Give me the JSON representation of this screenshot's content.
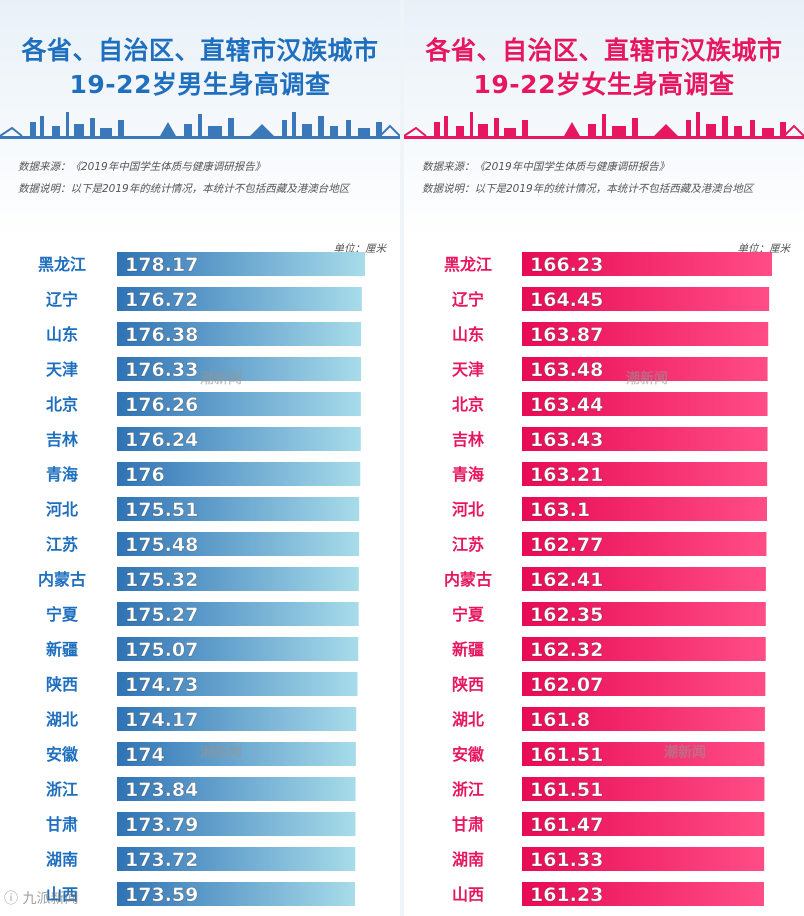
{
  "panels": [
    {
      "title_line1": "各省、自治区、直辖市汉族城市",
      "title_line2": "19-22岁男生身高调查",
      "source": "数据来源：《2019年中国学生体质与健康调研报告》",
      "note": "数据说明：以下是2019年的统计情况，本统计不包括西藏及港澳台地区",
      "unit": "单位：厘米",
      "accent": "#1f6fbf"
    },
    {
      "title_line1": "各省、自治区、直辖市汉族城市",
      "title_line2": "19-22岁女生身高调查",
      "source": "数据来源：《2019年中国学生体质与健康调研报告》",
      "note": "数据说明：以下是2019年的统计情况，本统计不包括西藏及港澳台地区",
      "unit": "单位：厘米",
      "accent": "#e6175f"
    }
  ],
  "watermark": "潮新闻",
  "corner_mark": "ⓘ 九派新闻",
  "chart_data": [
    {
      "type": "bar",
      "orientation": "horizontal",
      "title": "各省、自治区、直辖市汉族城市 19-22岁男生身高调查",
      "unit": "厘米",
      "bar_colors": [
        "#2f73b5",
        "#a8dcea"
      ],
      "label_color": "#1f6fbf",
      "categories": [
        "黑龙江",
        "辽宁",
        "山东",
        "天津",
        "北京",
        "吉林",
        "青海",
        "河北",
        "江苏",
        "内蒙古",
        "宁夏",
        "新疆",
        "陕西",
        "湖北",
        "安徽",
        "浙江",
        "甘肃",
        "湖南",
        "山西"
      ],
      "values": [
        178.17,
        176.72,
        176.38,
        176.33,
        176.26,
        176.24,
        176,
        175.51,
        175.48,
        175.32,
        175.27,
        175.07,
        174.73,
        174.17,
        174,
        173.84,
        173.79,
        173.72,
        173.59
      ]
    },
    {
      "type": "bar",
      "orientation": "horizontal",
      "title": "各省、自治区、直辖市汉族城市 19-22岁女生身高调查",
      "unit": "厘米",
      "bar_colors": [
        "#e80a55",
        "#ff4d86"
      ],
      "label_color": "#e6175f",
      "categories": [
        "黑龙江",
        "辽宁",
        "山东",
        "天津",
        "北京",
        "吉林",
        "青海",
        "河北",
        "江苏",
        "内蒙古",
        "宁夏",
        "新疆",
        "陕西",
        "湖北",
        "安徽",
        "浙江",
        "甘肃",
        "湖南",
        "山西"
      ],
      "values": [
        166.23,
        164.45,
        163.87,
        163.48,
        163.44,
        163.43,
        163.21,
        163.1,
        162.77,
        162.41,
        162.35,
        162.32,
        162.07,
        161.8,
        161.51,
        161.51,
        161.47,
        161.33,
        161.23
      ]
    }
  ]
}
